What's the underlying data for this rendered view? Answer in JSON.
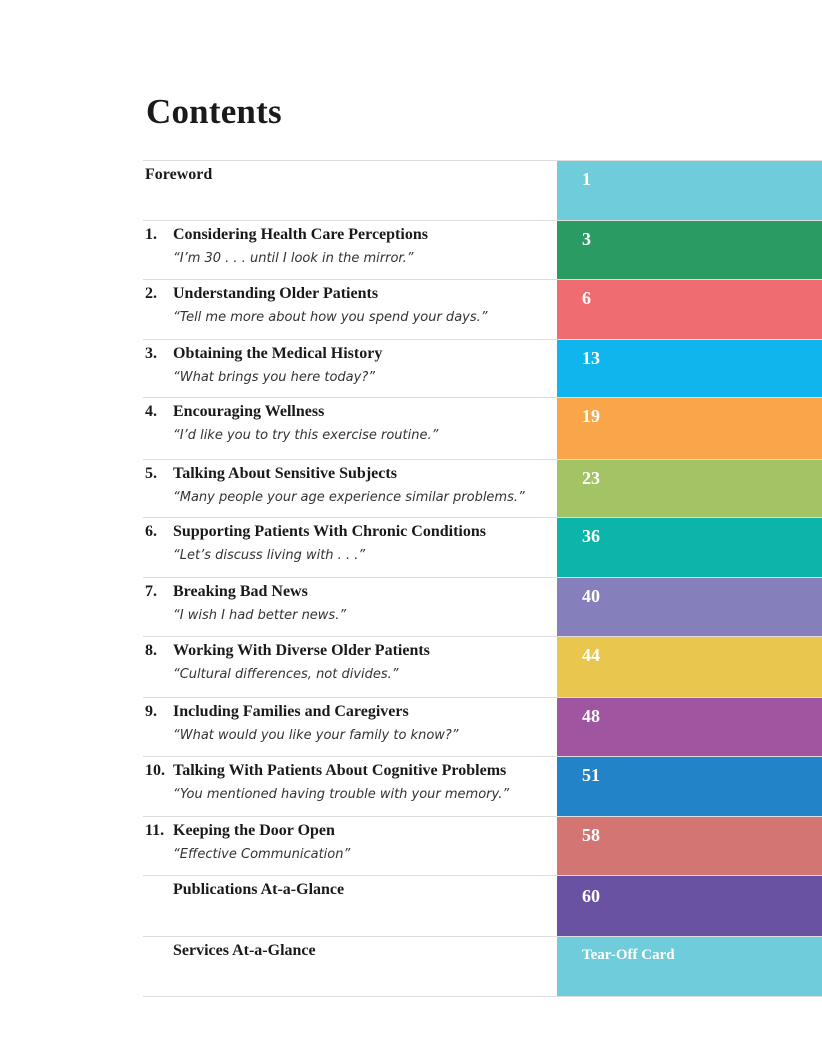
{
  "title": "Contents",
  "entries": [
    {
      "num": "",
      "heading": "Foreword",
      "quote": "",
      "page": "1",
      "color": "#6fcddb",
      "h": 60
    },
    {
      "num": "1.",
      "heading": "Considering Health Care Perceptions",
      "quote": "“I’m 30 . . . until I look in the mirror.”",
      "page": "3",
      "color": "#2a9b62",
      "h": 59
    },
    {
      "num": "2.",
      "heading": "Understanding Older Patients",
      "quote": "“Tell me more about how you spend your days.”",
      "page": "6",
      "color": "#ef6d70",
      "h": 60
    },
    {
      "num": "3.",
      "heading": "Obtaining the Medical History",
      "quote": "“What brings you here today?”",
      "page": "13",
      "color": "#0fb5ec",
      "h": 58
    },
    {
      "num": "4.",
      "heading": "Encouraging Wellness",
      "quote": "“I’d like you to try this exercise routine.”",
      "page": "19",
      "color": "#f9a64b",
      "h": 62
    },
    {
      "num": "5.",
      "heading": "Talking About Sensitive Subjects",
      "quote": "“Many people your age experience similar problems.”",
      "page": "23",
      "color": "#a3c364",
      "h": 58
    },
    {
      "num": "6.",
      "heading": "Supporting Patients With Chronic Conditions",
      "quote": "“Let’s discuss living with . . .”",
      "page": "36",
      "color": "#0db4a9",
      "h": 60
    },
    {
      "num": "7.",
      "heading": "Breaking Bad News",
      "quote": "“I wish I had better news.”",
      "page": "40",
      "color": "#857fbc",
      "h": 59
    },
    {
      "num": "8.",
      "heading": "Working With Diverse Older Patients",
      "quote": "“Cultural differences, not divides.”",
      "page": "44",
      "color": "#e9c74f",
      "h": 61
    },
    {
      "num": "9.",
      "heading": "Including Families and Caregivers",
      "quote": "“What would you like your family to know?”",
      "page": "48",
      "color": "#a055a0",
      "h": 59
    },
    {
      "num": "10.",
      "heading": "Talking With Patients About Cognitive Problems",
      "quote": "“You mentioned having trouble with your memory.”",
      "page": "51",
      "color": "#2383c8",
      "h": 60
    },
    {
      "num": "11.",
      "heading": "Keeping the Door Open",
      "quote": "“Effective Communication”",
      "page": "58",
      "color": "#d37573",
      "h": 59
    },
    {
      "num": "",
      "heading": "Publications At-a-Glance",
      "quote": "",
      "page": "60",
      "color": "#6952a2",
      "h": 61
    },
    {
      "num": "",
      "heading": "Services At-a-Glance",
      "quote": "",
      "page": "Tear-Off Card",
      "color": "#6fcddb",
      "h": 60
    }
  ]
}
